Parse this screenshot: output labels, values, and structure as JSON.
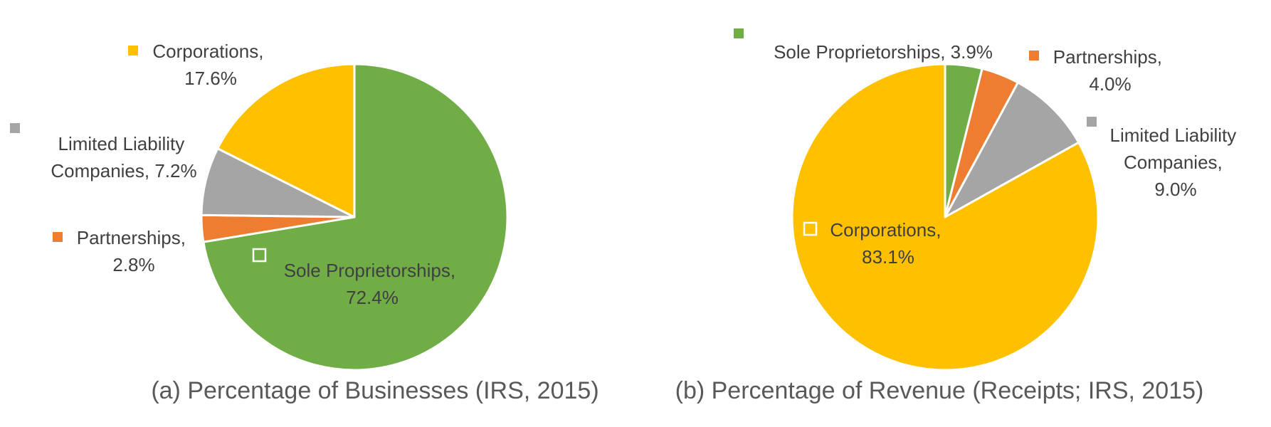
{
  "chart_data": [
    {
      "type": "pie",
      "caption": "(a) Percentage of Businesses (IRS, 2015)",
      "slices": [
        {
          "name": "Sole Proprietorships",
          "value": 72.4,
          "label_line1": "Sole Proprietorships,",
          "label_line2": "72.4%",
          "color": "#70AD47"
        },
        {
          "name": "Partnerships",
          "value": 2.8,
          "label_line1": "Partnerships,",
          "label_line2": "2.8%",
          "color": "#ED7D31"
        },
        {
          "name": "Limited Liability Companies",
          "value": 7.2,
          "label_line1": "Limited Liability",
          "label_line2": "Companies, 7.2%",
          "color": "#A5A5A5"
        },
        {
          "name": "Corporations",
          "value": 17.6,
          "label_line1": "Corporations,",
          "label_line2": "17.6%",
          "color": "#FFC000"
        }
      ]
    },
    {
      "type": "pie",
      "caption": "(b) Percentage of Revenue (Receipts; IRS, 2015)",
      "slices": [
        {
          "name": "Sole Proprietorships",
          "value": 3.9,
          "label_line1": "Sole Proprietorships, 3.9%",
          "color": "#70AD47"
        },
        {
          "name": "Partnerships",
          "value": 4.0,
          "label_line1": "Partnerships,",
          "label_line2": "4.0%",
          "color": "#ED7D31"
        },
        {
          "name": "Limited Liability Companies",
          "value": 9.0,
          "label_line1": "Limited Liability",
          "label_line2": "Companies,",
          "label_line3": "9.0%",
          "color": "#A5A5A5"
        },
        {
          "name": "Corporations",
          "value": 83.1,
          "label_line1": "Corporations,",
          "label_line2": "83.1%",
          "color": "#FFC000"
        }
      ]
    }
  ]
}
